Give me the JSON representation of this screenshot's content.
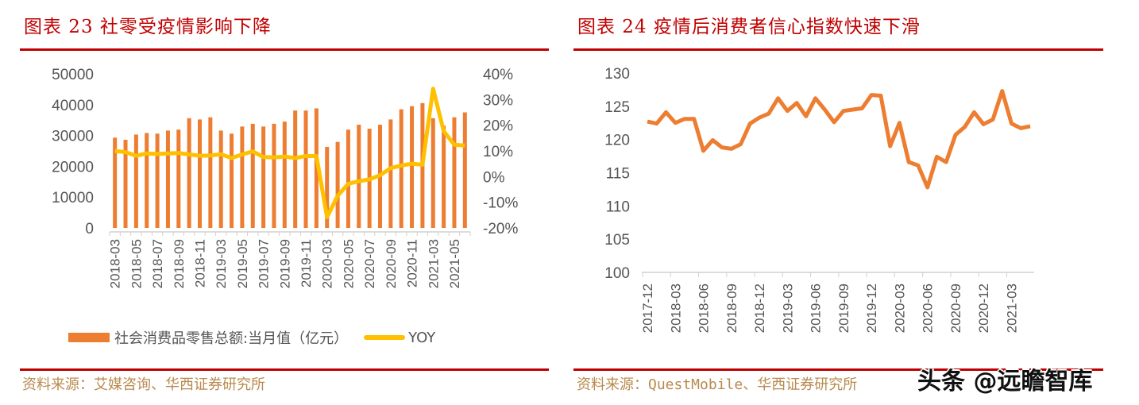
{
  "left": {
    "title": "图表 23   社零受疫情影响下降",
    "source": "资料来源：艾媒咨询、华西证券研究所",
    "legend": {
      "bar": "社会消费品零售总额:当月值（亿元）",
      "line": "YOY"
    }
  },
  "right": {
    "title": "图表 24   疫情后消费者信心指数快速下滑",
    "source": "资料来源：QuestMobile、华西证券研究所"
  },
  "watermark": "头条 @远瞻智库",
  "colors": {
    "title": "#c00000",
    "bar": "#ed7d31",
    "yoy": "#ffc000",
    "index_line": "#ed7d31",
    "source": "#b98a4e"
  },
  "chart_data": [
    {
      "type": "bar+line",
      "categories": [
        "2018-03",
        "2018-04",
        "2018-05",
        "2018-06",
        "2018-07",
        "2018-08",
        "2018-09",
        "2018-10",
        "2018-11",
        "2018-12",
        "2019-03",
        "2019-04",
        "2019-05",
        "2019-06",
        "2019-07",
        "2019-08",
        "2019-09",
        "2019-10",
        "2019-11",
        "2019-12",
        "2020-03",
        "2020-04",
        "2020-05",
        "2020-06",
        "2020-07",
        "2020-08",
        "2020-09",
        "2020-10",
        "2020-11",
        "2020-12",
        "2021-03",
        "2021-04",
        "2021-05",
        "2021-06"
      ],
      "tick_labels": [
        "2018-03",
        "2018-05",
        "2018-07",
        "2018-09",
        "2018-11",
        "2019-03",
        "2019-05",
        "2019-07",
        "2019-09",
        "2019-11",
        "2020-03",
        "2020-05",
        "2020-07",
        "2020-09",
        "2020-11",
        "2021-03",
        "2021-05"
      ],
      "series": [
        {
          "name": "社会消费品零售总额:当月值（亿元）",
          "axis": "left",
          "type": "bar",
          "values": [
            29300,
            28600,
            30300,
            30800,
            30600,
            31600,
            31900,
            35600,
            35200,
            35900,
            31600,
            30600,
            32900,
            33800,
            32900,
            33800,
            34500,
            38100,
            38100,
            38800,
            26300,
            27900,
            31900,
            33500,
            32200,
            33500,
            35200,
            38500,
            39500,
            40500,
            35600,
            33200,
            35900,
            37500
          ]
        },
        {
          "name": "YOY",
          "axis": "right",
          "type": "line",
          "values": [
            10.0,
            9.5,
            8.1,
            9.0,
            8.8,
            9.0,
            9.2,
            8.6,
            8.1,
            8.2,
            8.7,
            7.2,
            8.6,
            9.8,
            7.6,
            7.5,
            7.8,
            7.2,
            8.0,
            8.0,
            -15.8,
            -7.5,
            -2.8,
            -1.8,
            -1.1,
            0.5,
            3.3,
            4.3,
            5.0,
            4.6,
            34.2,
            17.7,
            12.4,
            12.1
          ]
        }
      ],
      "yaxis_left": {
        "range": [
          0,
          50000
        ],
        "ticks": [
          "0",
          "10000",
          "20000",
          "30000",
          "40000",
          "50000"
        ]
      },
      "yaxis_right": {
        "range": [
          -20,
          40
        ],
        "ticks": [
          "-20%",
          "-10%",
          "0%",
          "10%",
          "20%",
          "30%",
          "40%"
        ]
      },
      "grid": false,
      "legend": "bottom"
    },
    {
      "type": "line",
      "x_start": "2017-12",
      "tick_labels": [
        "2017-12",
        "2018-03",
        "2018-06",
        "2018-09",
        "2018-12",
        "2019-03",
        "2019-06",
        "2019-09",
        "2019-12",
        "2020-03",
        "2020-06",
        "2020-09",
        "2020-12",
        "2021-03"
      ],
      "values": [
        122.7,
        122.4,
        124.1,
        122.5,
        123.1,
        123.1,
        118.3,
        119.9,
        118.8,
        118.6,
        119.3,
        122.4,
        123.3,
        123.9,
        126.2,
        124.3,
        125.5,
        123.5,
        126.2,
        124.5,
        122.6,
        124.3,
        124.5,
        124.7,
        126.7,
        126.6,
        119.0,
        122.5,
        116.6,
        116.1,
        112.8,
        117.4,
        116.6,
        120.7,
        121.9,
        124.1,
        122.3,
        123.0,
        127.3,
        122.4,
        121.7,
        122.0
      ],
      "yaxis": {
        "range": [
          100,
          130
        ],
        "ticks": [
          "100",
          "105",
          "110",
          "115",
          "120",
          "125",
          "130"
        ]
      },
      "grid": false,
      "legend": "none"
    }
  ]
}
